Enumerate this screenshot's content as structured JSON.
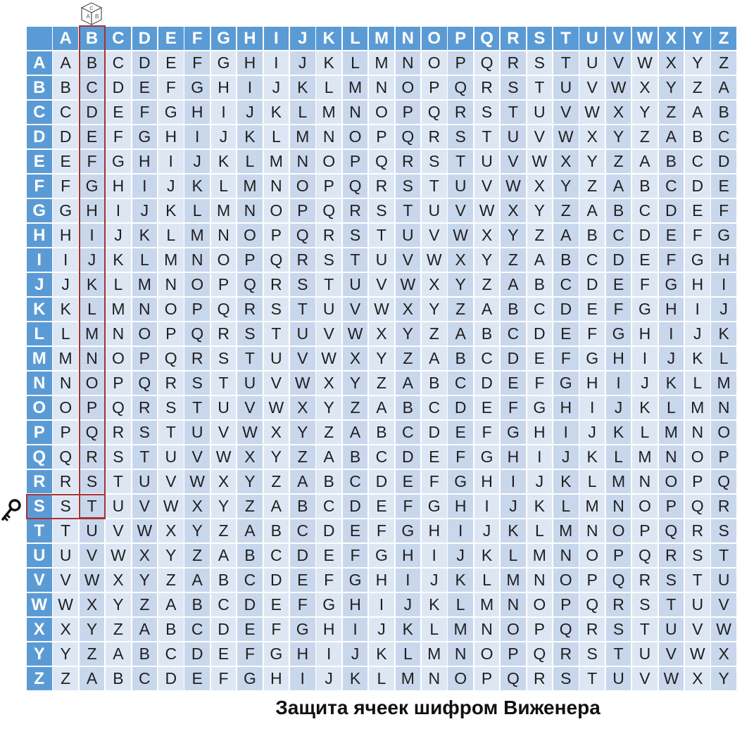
{
  "alphabet": [
    "A",
    "B",
    "C",
    "D",
    "E",
    "F",
    "G",
    "H",
    "I",
    "J",
    "K",
    "L",
    "M",
    "N",
    "O",
    "P",
    "Q",
    "R",
    "S",
    "T",
    "U",
    "V",
    "W",
    "X",
    "Y",
    "Z"
  ],
  "highlight": {
    "column_letter": "B",
    "row_letter": "S"
  },
  "caption": "Защита ячеек шифром Виженера",
  "cube_icon": {
    "name": "cube-icon",
    "faces": [
      "A",
      "B",
      "C"
    ]
  },
  "key_icon": {
    "name": "key-icon"
  },
  "colors": {
    "header": "#5b9bd5",
    "cell_light": "#dde7f4",
    "cell_dark": "#c9d7ec",
    "highlight_border": "#a83232"
  }
}
